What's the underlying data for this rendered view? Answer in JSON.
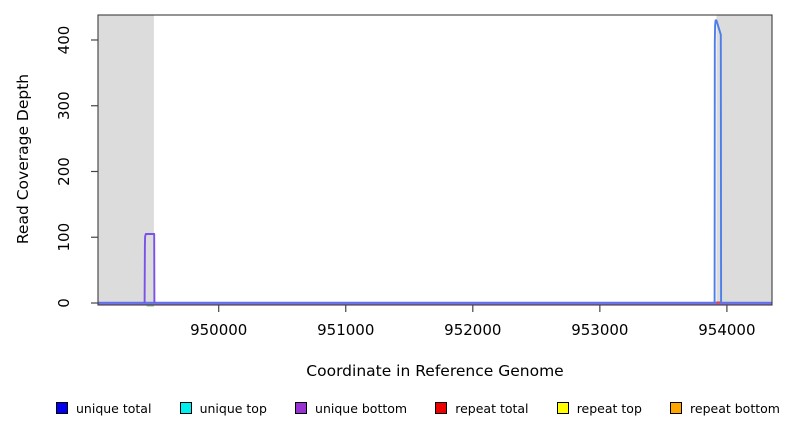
{
  "chart_data": {
    "type": "line",
    "title": "",
    "xlabel": "Coordinate in Reference Genome",
    "ylabel": "Read Coverage Depth",
    "xlim": [
      949050,
      954355
    ],
    "ylim": [
      0,
      438
    ],
    "xticks": [
      950000,
      951000,
      952000,
      953000,
      954000
    ],
    "yticks": [
      0,
      100,
      200,
      300,
      400
    ],
    "grid": false,
    "plot_background": "#ffffff",
    "frame_color": "#3c3c3c",
    "tick_color": "#454545",
    "shaded_regions": [
      {
        "name": "masked-region-left",
        "x0": 949050,
        "x1": 949490,
        "color": "#dcdcdc"
      },
      {
        "name": "masked-region-right",
        "x0": 953918,
        "x1": 954355,
        "color": "#dcdcdc"
      }
    ],
    "draw_series": [
      {
        "name": "repeat-top-base-mark",
        "color": "#90d890",
        "width": 2.4,
        "dy": 2.4,
        "points": [
          [
            949433,
            0
          ],
          [
            949490,
            0
          ]
        ]
      },
      {
        "name": "unique-bottom-baseline",
        "color": "#9a6ae8",
        "width": 1.7,
        "dy": 1.1,
        "points": [
          [
            949050,
            0
          ],
          [
            954355,
            0
          ]
        ]
      },
      {
        "name": "unique-total-baseline",
        "color": "#5577e8",
        "width": 1.8,
        "dy": -0.4,
        "points": [
          [
            949050,
            0
          ],
          [
            954355,
            0
          ]
        ]
      },
      {
        "name": "unique-bottom-peak",
        "color": "#7a52e8",
        "width": 1.9,
        "dy": 0,
        "points": [
          [
            949417,
            0
          ],
          [
            949419,
            88
          ],
          [
            949421,
            101
          ],
          [
            949426,
            105
          ],
          [
            949492,
            105
          ],
          [
            949494,
            0
          ]
        ]
      },
      {
        "name": "unique-total-peak",
        "color": "#4d7de8",
        "width": 1.9,
        "dy": 0,
        "points": [
          [
            953903,
            0
          ],
          [
            953905,
            395
          ],
          [
            953907,
            422
          ],
          [
            953911,
            430
          ],
          [
            953917,
            430
          ],
          [
            953952,
            408
          ],
          [
            953954,
            0
          ]
        ]
      },
      {
        "name": "repeat-total-base-mark",
        "color": "#e04545",
        "width": 2.0,
        "dy": 0.8,
        "points": [
          [
            953916,
            2
          ],
          [
            953948,
            2
          ]
        ]
      }
    ],
    "legend": [
      {
        "label": "unique total",
        "color": "#0000ee"
      },
      {
        "label": "unique top",
        "color": "#00eeee"
      },
      {
        "label": "unique bottom",
        "color": "#9932d2"
      },
      {
        "label": "repeat total",
        "color": "#ee0000"
      },
      {
        "label": "repeat top",
        "color": "#ffff00"
      },
      {
        "label": "repeat bottom",
        "color": "#ffa500"
      }
    ],
    "legend_position": "bottom"
  }
}
